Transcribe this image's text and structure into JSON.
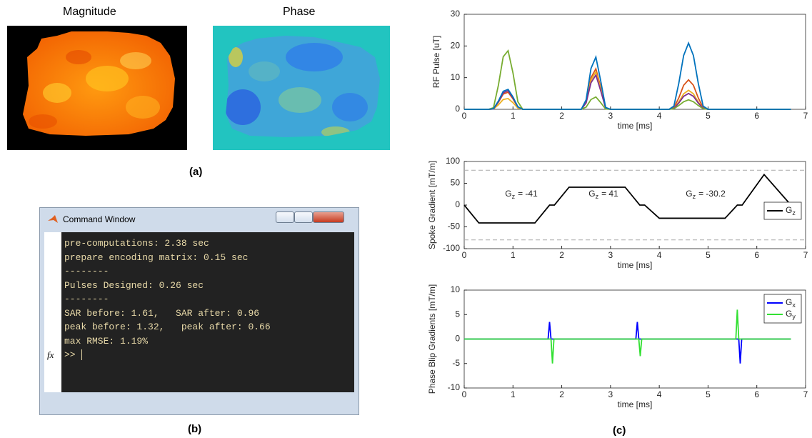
{
  "panels": {
    "a": "(a)",
    "b": "(b)",
    "c": "(c)"
  },
  "images": {
    "magnitude_title": "Magnitude",
    "phase_title": "Phase"
  },
  "command_window": {
    "title": "Command Window",
    "lines": [
      "pre-computations: 2.38 sec",
      "prepare encoding matrix: 0.15 sec",
      "--------",
      "Pulses Designed: 0.26 sec",
      "--------",
      "SAR before: 1.61,   SAR after: 0.96",
      "peak before: 1.32,   peak after: 0.66",
      "max RMSE: 1.19%"
    ],
    "prompt": ">>",
    "fx": "fx"
  },
  "chart_data": [
    {
      "type": "line",
      "ylabel": "RF Pulse [uT]",
      "xlabel": "time [ms]",
      "xlim": [
        0,
        7
      ],
      "xticks": [
        0,
        1,
        2,
        3,
        4,
        5,
        6,
        7
      ],
      "ylim": [
        0,
        30
      ],
      "yticks": [
        0,
        10,
        20,
        30
      ],
      "x": [
        0,
        0.5,
        0.6,
        0.7,
        0.8,
        0.9,
        1.0,
        1.1,
        1.2,
        2.4,
        2.5,
        2.6,
        2.7,
        2.8,
        2.9,
        3.0,
        4.2,
        4.3,
        4.4,
        4.5,
        4.6,
        4.7,
        4.8,
        4.9,
        5.0,
        6.7
      ],
      "series": [
        {
          "color": "#d95319",
          "values": [
            0,
            0,
            0.1,
            2.2,
            4.8,
            5.4,
            3.3,
            0.7,
            0,
            0,
            2.4,
            10.0,
            12.8,
            6.9,
            0.5,
            0,
            0,
            0.5,
            3.6,
            7.6,
            9.3,
            7.6,
            3.6,
            0.5,
            0,
            0
          ]
        },
        {
          "color": "#edb120",
          "values": [
            0,
            0,
            0.1,
            1.4,
            3.1,
            3.4,
            2.1,
            0.4,
            0,
            0,
            2.2,
            9.2,
            11.8,
            6.4,
            0.4,
            0,
            0,
            0.3,
            2.3,
            4.9,
            6,
            4.9,
            2.3,
            0.3,
            0,
            0
          ]
        },
        {
          "color": "#7e2f8e",
          "values": [
            0,
            0,
            0.1,
            2.4,
            5.2,
            5.9,
            3.6,
            0.8,
            0,
            0,
            2.0,
            8.4,
            10.8,
            5.8,
            0.4,
            0,
            0,
            0.3,
            2.0,
            4.1,
            5,
            4.1,
            2.0,
            0.3,
            0,
            0
          ]
        },
        {
          "color": "#77ac30",
          "values": [
            0,
            0,
            0.5,
            7.5,
            16.6,
            18.5,
            11.5,
            2.4,
            0,
            0,
            0.7,
            3.1,
            3.9,
            2.1,
            0.1,
            0,
            0,
            0.2,
            1.2,
            2.4,
            3,
            2.4,
            1.2,
            0.2,
            0,
            0
          ]
        },
        {
          "color": "#0072bd",
          "values": [
            0,
            0,
            0.2,
            2.6,
            5.7,
            6.3,
            3.9,
            0.8,
            0,
            0,
            3.0,
            12.9,
            16.5,
            8.9,
            0.6,
            0,
            0,
            1.0,
            8.2,
            17.0,
            20.9,
            17.0,
            8.2,
            1.0,
            0,
            0
          ]
        }
      ]
    },
    {
      "type": "line",
      "ylabel": "Spoke Gradient [mT/m]",
      "xlabel": "time [ms]",
      "xlim": [
        0,
        7
      ],
      "xticks": [
        0,
        1,
        2,
        3,
        4,
        5,
        6,
        7
      ],
      "ylim": [
        -100,
        100
      ],
      "yticks": [
        -100,
        -50,
        0,
        50,
        100
      ],
      "hlines": [
        -80,
        80
      ],
      "legend": "center right",
      "x": [
        0,
        0.3,
        1.45,
        1.75,
        1.85,
        2.15,
        3.3,
        3.6,
        3.7,
        4.0,
        5.35,
        5.6,
        5.7,
        6.15,
        6.7
      ],
      "series": [
        {
          "name": "G",
          "subscript": "z",
          "color": "#000000",
          "values": [
            0,
            -41,
            -41,
            0,
            0,
            41,
            41,
            0,
            0,
            -30.2,
            -30.2,
            0,
            0,
            70,
            0
          ]
        }
      ],
      "annotations": [
        {
          "base": "G",
          "sub": "z",
          "text": "= -41"
        },
        {
          "base": "G",
          "sub": "z",
          "text": "= 41"
        },
        {
          "base": "G",
          "sub": "z",
          "text": "= -30.2"
        }
      ]
    },
    {
      "type": "line",
      "ylabel": "Phase Blip Gradients [mT/m]",
      "xlabel": "time [ms]",
      "xlim": [
        0,
        7
      ],
      "xticks": [
        0,
        1,
        2,
        3,
        4,
        5,
        6,
        7
      ],
      "ylim": [
        -10,
        10
      ],
      "yticks": [
        -10,
        -5,
        0,
        5,
        10
      ],
      "legend": "upper right",
      "x": [
        0,
        1.72,
        1.75,
        1.78,
        1.81,
        1.84,
        3.52,
        3.55,
        3.58,
        3.61,
        3.64,
        5.57,
        5.6,
        5.63,
        5.66,
        5.69,
        6.7
      ],
      "series": [
        {
          "name": "G",
          "subscript": "x",
          "color": "#0000ff",
          "values": [
            0,
            0,
            3.5,
            0,
            0,
            0,
            0,
            3.5,
            0,
            0,
            0,
            0,
            0,
            0,
            -5,
            0,
            0
          ]
        },
        {
          "name": "G",
          "subscript": "y",
          "color": "#33e033",
          "values": [
            0,
            0,
            0,
            0,
            -5,
            0,
            0,
            0,
            0,
            -3.5,
            0,
            0,
            6,
            0,
            0,
            0,
            0
          ]
        }
      ]
    }
  ]
}
